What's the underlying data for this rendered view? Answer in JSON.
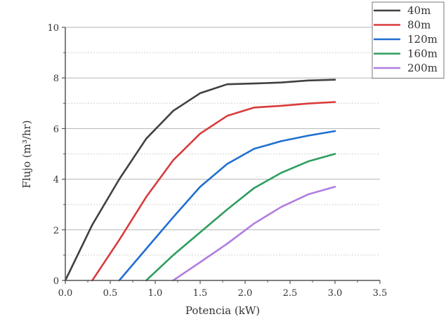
{
  "chart_data": {
    "type": "line",
    "title": "",
    "xlabel": "Potencia (kW)",
    "ylabel": "Flujo (m³/hr)",
    "xlim": [
      0,
      3.5
    ],
    "ylim": [
      0,
      10
    ],
    "xticks": [
      "0.0",
      "0.5",
      "1.0",
      "1.5",
      "2.0",
      "2.5",
      "3.0",
      "3.5"
    ],
    "yticks": [
      "0",
      "2",
      "4",
      "6",
      "8",
      "10"
    ],
    "grid": "horizontal (major solid, minor dotted)",
    "legend_position": "top-right",
    "series": [
      {
        "name": "40m",
        "color": "#404040",
        "x": [
          0,
          0.3,
          0.6,
          0.9,
          1.2,
          1.5,
          1.8,
          2.1,
          2.4,
          2.7,
          3.0
        ],
        "y": [
          0,
          2.2,
          4.0,
          5.6,
          6.7,
          7.4,
          7.75,
          7.78,
          7.82,
          7.9,
          7.93
        ]
      },
      {
        "name": "80m",
        "color": "#d93b3b",
        "x": [
          0.3,
          0.6,
          0.9,
          1.2,
          1.5,
          1.8,
          2.1,
          2.4,
          2.7,
          3.0
        ],
        "y": [
          0,
          1.6,
          3.3,
          4.75,
          5.8,
          6.5,
          6.83,
          6.9,
          6.99,
          7.05
        ]
      },
      {
        "name": "120m",
        "color": "#1f6fd1",
        "x": [
          0.6,
          0.9,
          1.2,
          1.5,
          1.8,
          2.1,
          2.4,
          2.7,
          3.0
        ],
        "y": [
          0,
          1.25,
          2.5,
          3.7,
          4.6,
          5.2,
          5.5,
          5.72,
          5.9
        ]
      },
      {
        "name": "160m",
        "color": "#2e9e5e",
        "x": [
          0.9,
          1.2,
          1.5,
          1.8,
          2.1,
          2.4,
          2.7,
          3.0
        ],
        "y": [
          0,
          1.0,
          1.9,
          2.8,
          3.65,
          4.25,
          4.7,
          5.0
        ]
      },
      {
        "name": "200m",
        "color": "#b07ee0",
        "x": [
          1.2,
          1.5,
          1.8,
          2.1,
          2.4,
          2.7,
          3.0
        ],
        "y": [
          0,
          0.72,
          1.45,
          2.25,
          2.9,
          3.4,
          3.7
        ]
      }
    ]
  }
}
